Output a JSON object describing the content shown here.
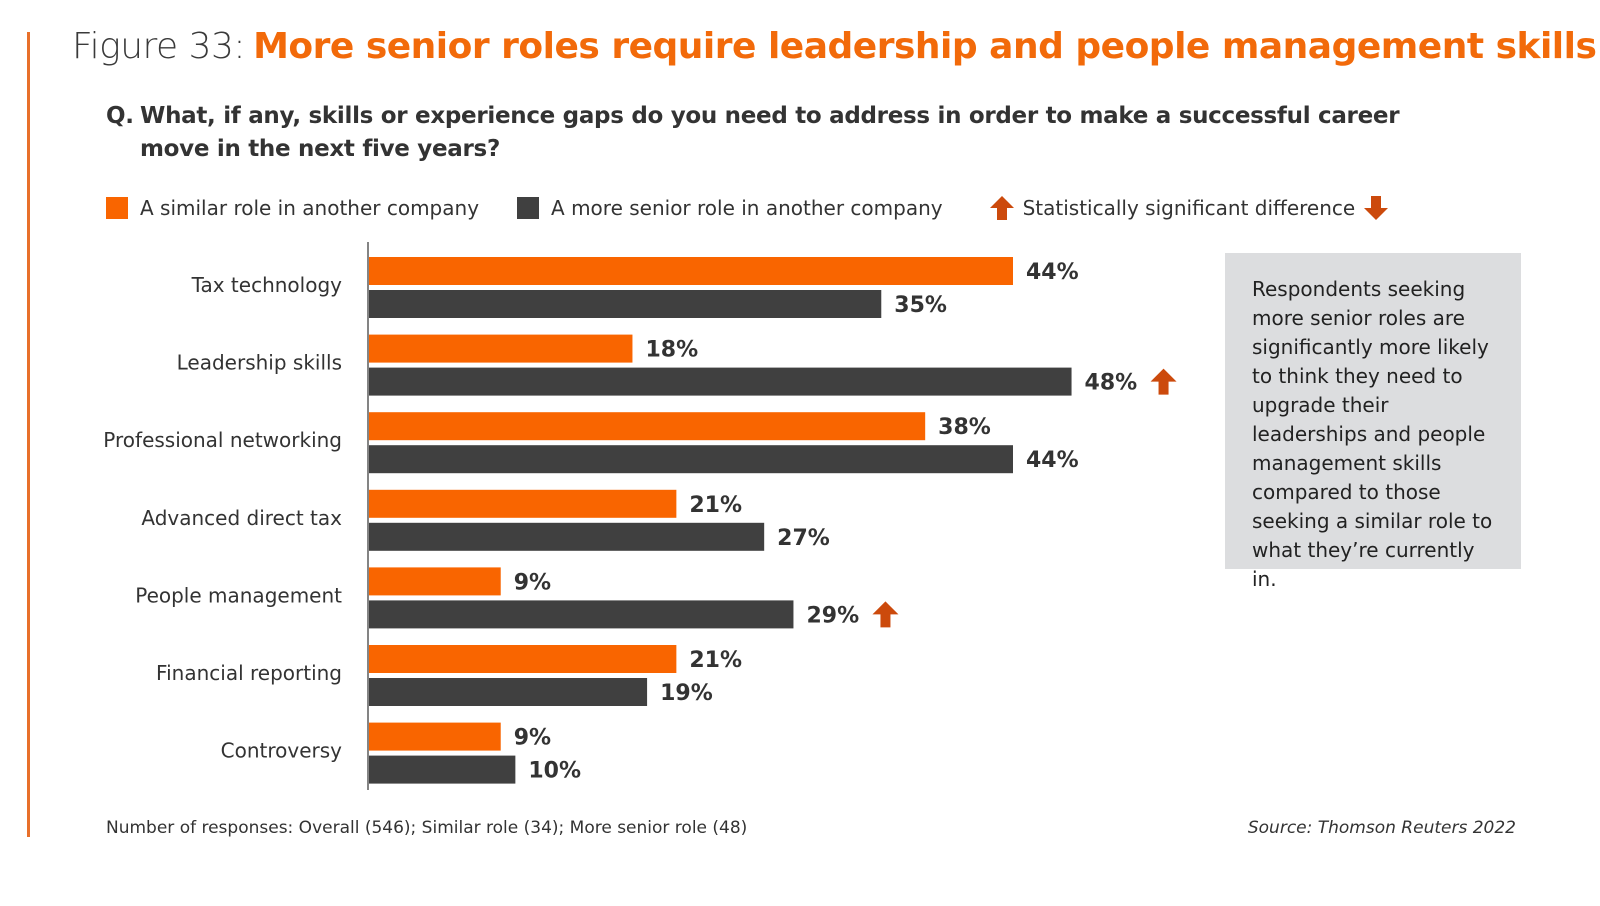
{
  "header": {
    "figure_label": "Figure 33:",
    "headline": "More senior roles require leadership and people management skills",
    "question_prefix": "Q.",
    "question": "What, if any, skills or experience gaps do you need to address in order to make a successful career move in the next five years?"
  },
  "legend": {
    "items": [
      {
        "label": "A similar role in another company",
        "color": "#f96500"
      },
      {
        "label": "A more senior role in another company",
        "color": "#404040"
      }
    ],
    "significance_label": "Statistically significant difference",
    "arrow_color": "#cc4a0c",
    "up_icon": "arrow-up-icon",
    "down_icon": "arrow-down-icon"
  },
  "callout": {
    "text": "Respondents seeking more senior roles are significantly more likely to think they need to upgrade their leaderships and people management skills compared to those seeking a similar role to what they’re currently in."
  },
  "footer": {
    "responses": "Number of responses: Overall (546); Similar role (34); More senior role (48)",
    "source": "Source: Thomson Reuters 2022"
  },
  "chart_data": {
    "type": "bar",
    "orientation": "horizontal",
    "title": "More senior roles require leadership and people management skills",
    "xlabel": "",
    "ylabel": "",
    "xlim": [
      0,
      50
    ],
    "grid": false,
    "legend_position": "top",
    "value_format": "percent",
    "categories": [
      "Tax technology",
      "Leadership skills",
      "Professional networking",
      "Advanced direct tax",
      "People management",
      "Financial reporting",
      "Controversy"
    ],
    "series": [
      {
        "name": "A similar role in another company",
        "color": "#f96500",
        "values": [
          44,
          18,
          38,
          21,
          9,
          21,
          9
        ],
        "significance": [
          null,
          null,
          null,
          null,
          null,
          null,
          null
        ]
      },
      {
        "name": "A more senior role in another company",
        "color": "#404040",
        "values": [
          35,
          48,
          44,
          27,
          29,
          19,
          10
        ],
        "significance": [
          null,
          "up",
          null,
          null,
          "up",
          null,
          null
        ]
      }
    ]
  }
}
